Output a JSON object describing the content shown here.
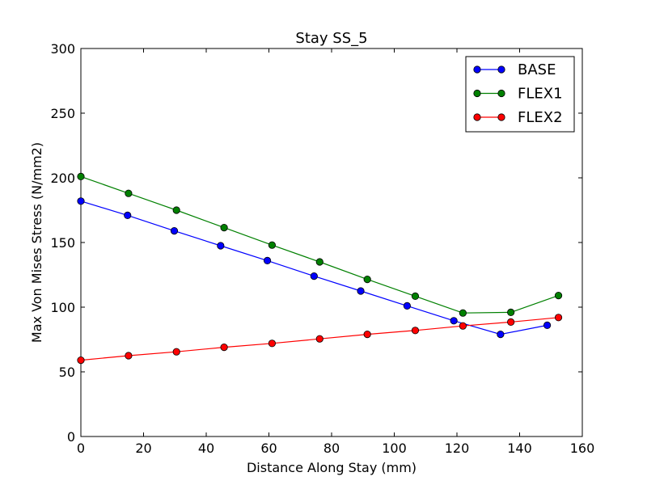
{
  "chart_data": {
    "type": "line",
    "title": "Stay SS_5",
    "xlabel": "Distance Along Stay (mm)",
    "ylabel": "Max Von Mises Stress (N/mm2)",
    "xlim": [
      0,
      160
    ],
    "ylim": [
      0,
      300
    ],
    "xticks": [
      0,
      20,
      40,
      60,
      80,
      100,
      120,
      140,
      160
    ],
    "yticks": [
      0,
      50,
      100,
      150,
      200,
      250,
      300
    ],
    "grid": false,
    "legend": "top-right",
    "series": [
      {
        "name": "BASE",
        "color": "#0000ff",
        "x": [
          0,
          14.9,
          29.8,
          44.6,
          59.5,
          74.4,
          89.3,
          104.1,
          119.0,
          133.9,
          148.8
        ],
        "y": [
          182,
          171,
          159,
          147.5,
          136,
          124,
          112.5,
          101,
          89.5,
          79,
          86
        ]
      },
      {
        "name": "FLEX1",
        "color": "#008000",
        "x": [
          0,
          15.2,
          30.5,
          45.7,
          61.0,
          76.2,
          91.4,
          106.7,
          121.9,
          137.2,
          152.4
        ],
        "y": [
          201,
          188,
          175,
          161.5,
          148,
          135,
          121.5,
          108.5,
          95.5,
          96,
          109
        ]
      },
      {
        "name": "FLEX2",
        "color": "#ff0000",
        "x": [
          0,
          15.2,
          30.5,
          45.7,
          61.0,
          76.2,
          91.4,
          106.7,
          121.9,
          137.2,
          152.4
        ],
        "y": [
          59,
          62.5,
          65.5,
          69,
          72,
          75.5,
          79,
          82,
          85.5,
          88.5,
          92
        ]
      }
    ]
  }
}
